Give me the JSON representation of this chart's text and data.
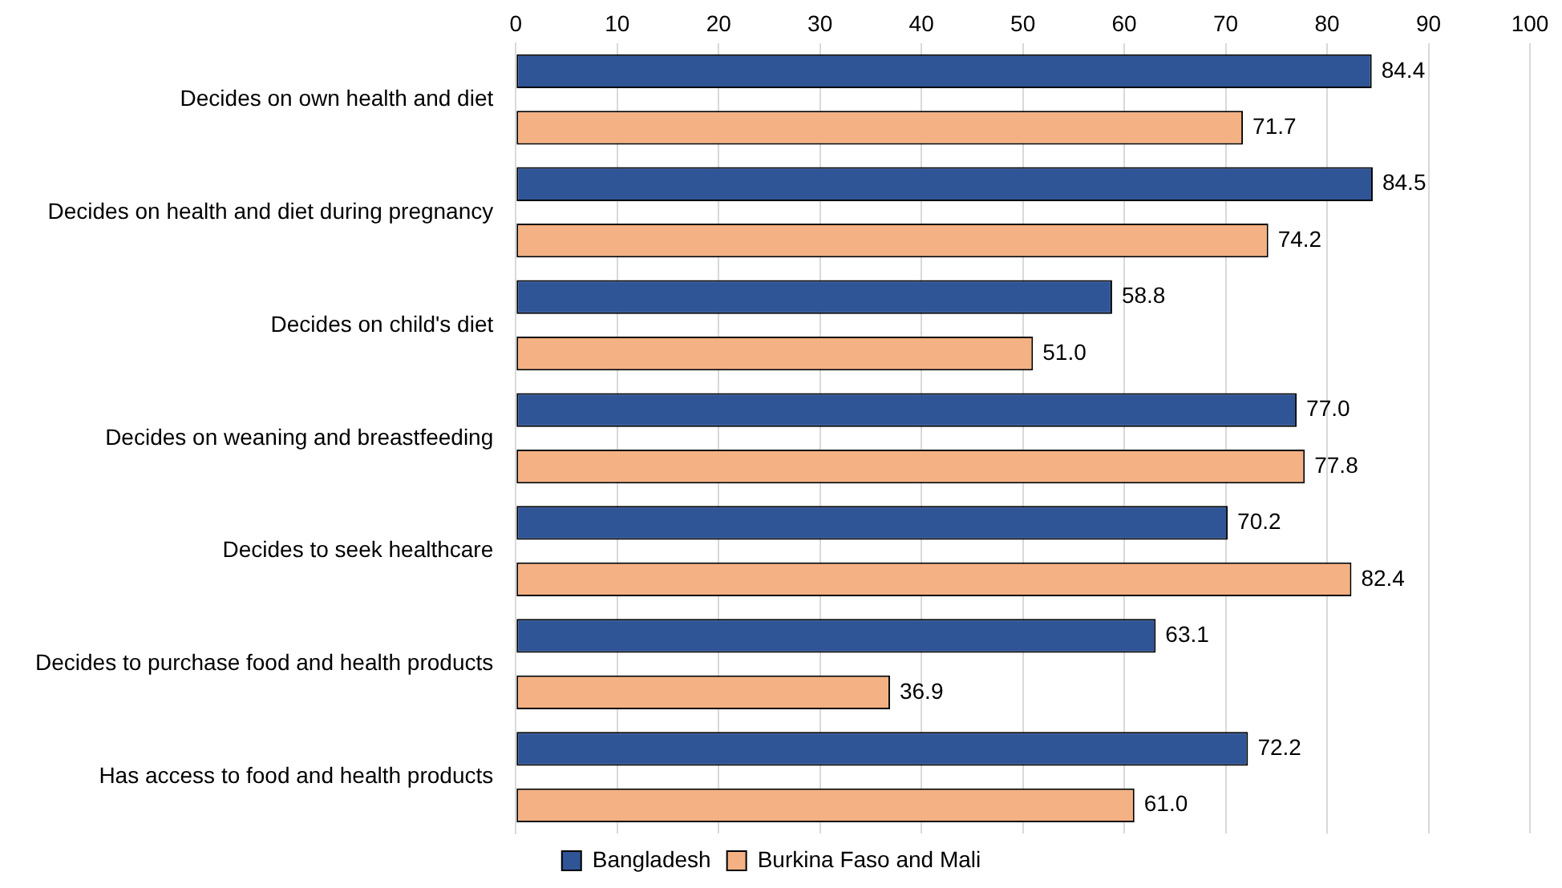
{
  "chart_data": {
    "type": "bar",
    "orientation": "horizontal",
    "categories": [
      "Decides on own health and diet",
      "Decides on health and diet during pregnancy",
      "Decides on child's diet",
      "Decides on weaning and breastfeeding",
      "Decides to seek healthcare",
      "Decides to purchase food and health products",
      "Has access to food and health products"
    ],
    "series": [
      {
        "name": "Bangladesh",
        "color": "#2f5597",
        "values": [
          84.4,
          84.5,
          58.8,
          77.0,
          70.2,
          63.1,
          72.2
        ],
        "value_labels": [
          "84.4",
          "84.5",
          "58.8",
          "77.0",
          "70.2",
          "63.1",
          "72.2"
        ]
      },
      {
        "name": "Burkina Faso and Mali",
        "color": "#f4b183",
        "values": [
          71.7,
          74.2,
          51.0,
          77.8,
          82.4,
          36.9,
          61.0
        ],
        "value_labels": [
          "71.7",
          "74.2",
          "51.0",
          "77.8",
          "82.4",
          "36.9",
          "61.0"
        ]
      }
    ],
    "xlim": [
      0,
      100
    ],
    "xticks": [
      0,
      10,
      20,
      30,
      40,
      50,
      60,
      70,
      80,
      90,
      100
    ],
    "grid": "x",
    "legend": "bottom"
  }
}
